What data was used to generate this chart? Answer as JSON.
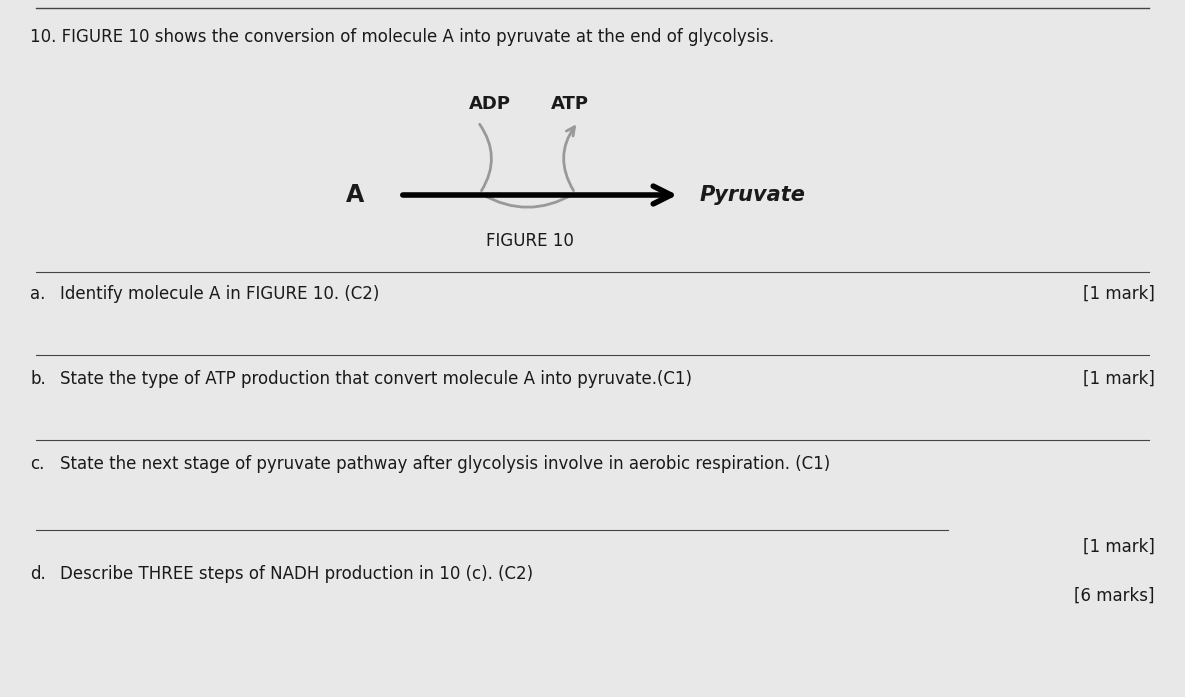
{
  "bg_color": "#e8e8e8",
  "title_text": "10. FIGURE 10 shows the conversion of molecule A into pyruvate at the end of glycolysis.",
  "figure_label": "FIGURE 10",
  "adp_label": "ADP",
  "atp_label": "ATP",
  "mol_a_label": "A",
  "pyruvate_label": "Pyruvate",
  "qa_letter": "a.",
  "qa_body": "Identify molecule A in FIGURE 10. (C2)",
  "qa_mark": "[1 mark]",
  "qb_letter": "b.",
  "qb_body": "State the type of ATP production that convert molecule A into pyruvate.(C1)",
  "qb_mark": "[1 mark]",
  "qc_letter": "c.",
  "qc_body": "State the next stage of pyruvate pathway after glycolysis involve in aerobic respiration. (C1)",
  "qc_mark": "[1 mark]",
  "qd_letter": "d.",
  "qd_body": "Describe THREE steps of NADH production in 10 (c). (C2)",
  "qd_mark": "[6 marks]",
  "title_fontsize": 12,
  "question_fontsize": 12,
  "mark_fontsize": 12,
  "figure_label_fontsize": 12,
  "adp_atp_fontsize": 13,
  "mol_a_fontsize": 17,
  "pyruvate_fontsize": 15,
  "line_color": "#444444",
  "text_color": "#1a1a1a",
  "arrow_color": "#999999"
}
